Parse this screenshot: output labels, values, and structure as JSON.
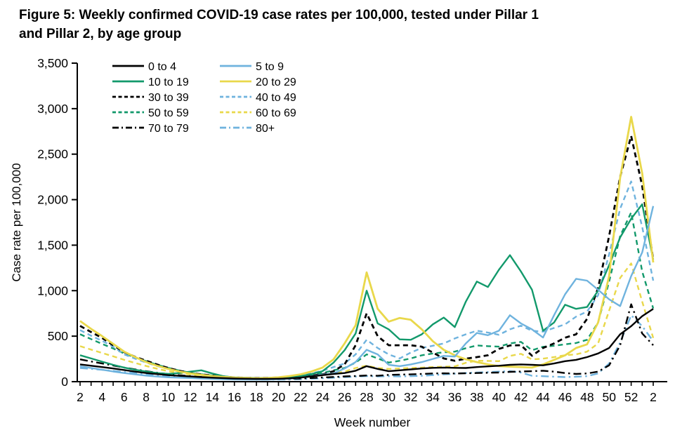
{
  "figure": {
    "title": "Figure 5: Weekly confirmed COVID-19 case rates per 100,000, tested under Pillar 1\nand Pillar 2, by age group"
  },
  "chart_data": {
    "type": "line",
    "title": "Figure 5: Weekly confirmed COVID-19 case rates per 100,000, tested under Pillar 1 and Pillar 2, by age group",
    "xlabel": "Week number",
    "ylabel": "Case rate per 100,000",
    "ylim": [
      0,
      3500
    ],
    "ytick_interval": 500,
    "ytick_labels": [
      "0",
      "500",
      "1,000",
      "1,500",
      "2,000",
      "2,500",
      "3,000",
      "3,500"
    ],
    "grid": false,
    "legend_position": "top-left two-column",
    "x_label_every": 2,
    "x_labels": [
      "2",
      "4",
      "6",
      "8",
      "10",
      "12",
      "14",
      "16",
      "18",
      "20",
      "22",
      "24",
      "26",
      "28",
      "30",
      "32",
      "34",
      "36",
      "38",
      "40",
      "42",
      "44",
      "46",
      "48",
      "50",
      "52",
      "2"
    ],
    "weeks": [
      2,
      3,
      4,
      5,
      6,
      7,
      8,
      9,
      10,
      11,
      12,
      13,
      14,
      15,
      16,
      17,
      18,
      19,
      20,
      21,
      22,
      23,
      24,
      25,
      26,
      27,
      28,
      29,
      30,
      31,
      32,
      33,
      34,
      35,
      36,
      37,
      38,
      39,
      40,
      41,
      42,
      43,
      44,
      45,
      46,
      47,
      48,
      49,
      50,
      51,
      52,
      1,
      2
    ],
    "colors": {
      "black": "#000000",
      "green": "#12996b",
      "blue": "#6fb3de",
      "yellow": "#e9d84b"
    },
    "legend_columns": [
      [
        "0 to 4",
        "10 to 19",
        "30 to 39",
        "50 to 59",
        "70 to 79"
      ],
      [
        "5 to 9",
        "20 to 29",
        "40 to 49",
        "60 to 69",
        "80+"
      ]
    ],
    "series": [
      {
        "name": "0 to 4",
        "color": "#000000",
        "dash": "solid",
        "values": [
          190,
          175,
          160,
          145,
          128,
          110,
          95,
          83,
          72,
          64,
          58,
          50,
          44,
          39,
          35,
          32,
          30,
          30,
          32,
          36,
          45,
          58,
          72,
          85,
          95,
          120,
          170,
          140,
          115,
          125,
          135,
          145,
          152,
          155,
          152,
          150,
          160,
          168,
          175,
          185,
          190,
          185,
          180,
          200,
          225,
          240,
          270,
          310,
          370,
          520,
          610,
          720,
          800
        ]
      },
      {
        "name": "5 to 9",
        "color": "#6fb3de",
        "dash": "solid",
        "values": [
          168,
          150,
          132,
          112,
          95,
          80,
          66,
          56,
          48,
          44,
          40,
          35,
          30,
          27,
          24,
          23,
          22,
          23,
          26,
          32,
          45,
          60,
          78,
          90,
          145,
          215,
          350,
          300,
          185,
          170,
          190,
          215,
          250,
          283,
          276,
          420,
          535,
          510,
          560,
          730,
          640,
          575,
          485,
          730,
          960,
          1130,
          1110,
          1010,
          905,
          830,
          1160,
          1420,
          1930
        ]
      },
      {
        "name": "10 to 19",
        "color": "#12996b",
        "dash": "solid",
        "values": [
          291,
          255,
          220,
          185,
          155,
          130,
          112,
          95,
          85,
          95,
          110,
          125,
          90,
          60,
          45,
          38,
          34,
          33,
          38,
          46,
          60,
          85,
          115,
          210,
          345,
          530,
          1000,
          640,
          575,
          465,
          460,
          520,
          630,
          705,
          600,
          880,
          1100,
          1040,
          1230,
          1390,
          1210,
          1010,
          560,
          650,
          845,
          800,
          820,
          1000,
          1280,
          1585,
          1790,
          1950,
          1340
        ]
      },
      {
        "name": "20 to 29",
        "color": "#e9d84b",
        "dash": "solid",
        "values": [
          667,
          580,
          500,
          415,
          330,
          270,
          215,
          175,
          140,
          112,
          90,
          75,
          62,
          52,
          45,
          41,
          38,
          40,
          48,
          62,
          80,
          112,
          155,
          245,
          420,
          620,
          1200,
          800,
          660,
          700,
          680,
          575,
          445,
          350,
          290,
          245,
          215,
          190,
          170,
          165,
          160,
          155,
          190,
          240,
          290,
          370,
          410,
          650,
          1160,
          2240,
          2910,
          2290,
          1310
        ]
      },
      {
        "name": "30 to 39",
        "color": "#000000",
        "dash": "dashed",
        "values": [
          613,
          545,
          480,
          400,
          325,
          272,
          230,
          188,
          150,
          120,
          95,
          80,
          68,
          56,
          46,
          42,
          40,
          42,
          45,
          52,
          60,
          68,
          80,
          115,
          190,
          400,
          750,
          500,
          400,
          400,
          400,
          385,
          320,
          255,
          230,
          253,
          270,
          290,
          360,
          398,
          400,
          285,
          370,
          420,
          483,
          520,
          690,
          1030,
          1600,
          2250,
          2700,
          2150,
          1340
        ]
      },
      {
        "name": "40 to 49",
        "color": "#6fb3de",
        "dash": "dashed",
        "values": [
          567,
          505,
          448,
          385,
          300,
          252,
          210,
          172,
          140,
          112,
          88,
          74,
          62,
          53,
          44,
          41,
          40,
          42,
          46,
          54,
          65,
          90,
          120,
          160,
          200,
          300,
          460,
          370,
          300,
          255,
          320,
          370,
          395,
          420,
          475,
          520,
          560,
          540,
          515,
          575,
          615,
          560,
          550,
          590,
          630,
          715,
          770,
          950,
          1400,
          1900,
          2200,
          1700,
          1110
        ]
      },
      {
        "name": "50 to 59",
        "color": "#12996b",
        "dash": "dashed",
        "values": [
          521,
          468,
          415,
          365,
          310,
          265,
          225,
          185,
          152,
          122,
          98,
          82,
          68,
          58,
          48,
          44,
          42,
          42,
          46,
          52,
          58,
          75,
          95,
          125,
          150,
          210,
          300,
          255,
          210,
          230,
          255,
          290,
          310,
          322,
          330,
          368,
          398,
          390,
          385,
          420,
          437,
          345,
          383,
          395,
          410,
          425,
          460,
          650,
          1100,
          1600,
          1860,
          1210,
          805
        ]
      },
      {
        "name": "60 to 69",
        "color": "#e9d84b",
        "dash": "dashed",
        "values": [
          390,
          352,
          315,
          278,
          240,
          205,
          172,
          142,
          115,
          95,
          78,
          66,
          55,
          47,
          40,
          36,
          33,
          32,
          34,
          39,
          45,
          58,
          72,
          90,
          110,
          150,
          176,
          150,
          140,
          145,
          150,
          155,
          160,
          165,
          168,
          207,
          230,
          228,
          225,
          283,
          306,
          245,
          253,
          270,
          291,
          300,
          330,
          420,
          780,
          1140,
          1300,
          880,
          480
        ]
      },
      {
        "name": "70 to 79",
        "color": "#000000",
        "dash": "dashdot",
        "values": [
          245,
          222,
          200,
          178,
          155,
          135,
          115,
          98,
          83,
          71,
          61,
          52,
          44,
          38,
          33,
          30,
          28,
          27,
          28,
          31,
          35,
          40,
          46,
          52,
          58,
          62,
          68,
          65,
          75,
          78,
          80,
          85,
          90,
          92,
          90,
          92,
          95,
          98,
          100,
          108,
          112,
          115,
          120,
          110,
          95,
          85,
          90,
          110,
          180,
          400,
          850,
          530,
          400
        ]
      },
      {
        "name": "80+",
        "color": "#6fb3de",
        "dash": "dashdot",
        "values": [
          150,
          140,
          130,
          118,
          106,
          94,
          82,
          72,
          62,
          54,
          47,
          42,
          36,
          31,
          27,
          25,
          23,
          22,
          23,
          25,
          28,
          33,
          38,
          44,
          50,
          56,
          62,
          58,
          60,
          58,
          60,
          65,
          72,
          80,
          88,
          95,
          100,
          105,
          110,
          115,
          100,
          65,
          60,
          55,
          50,
          55,
          60,
          90,
          200,
          430,
          730,
          610,
          445
        ]
      }
    ]
  }
}
